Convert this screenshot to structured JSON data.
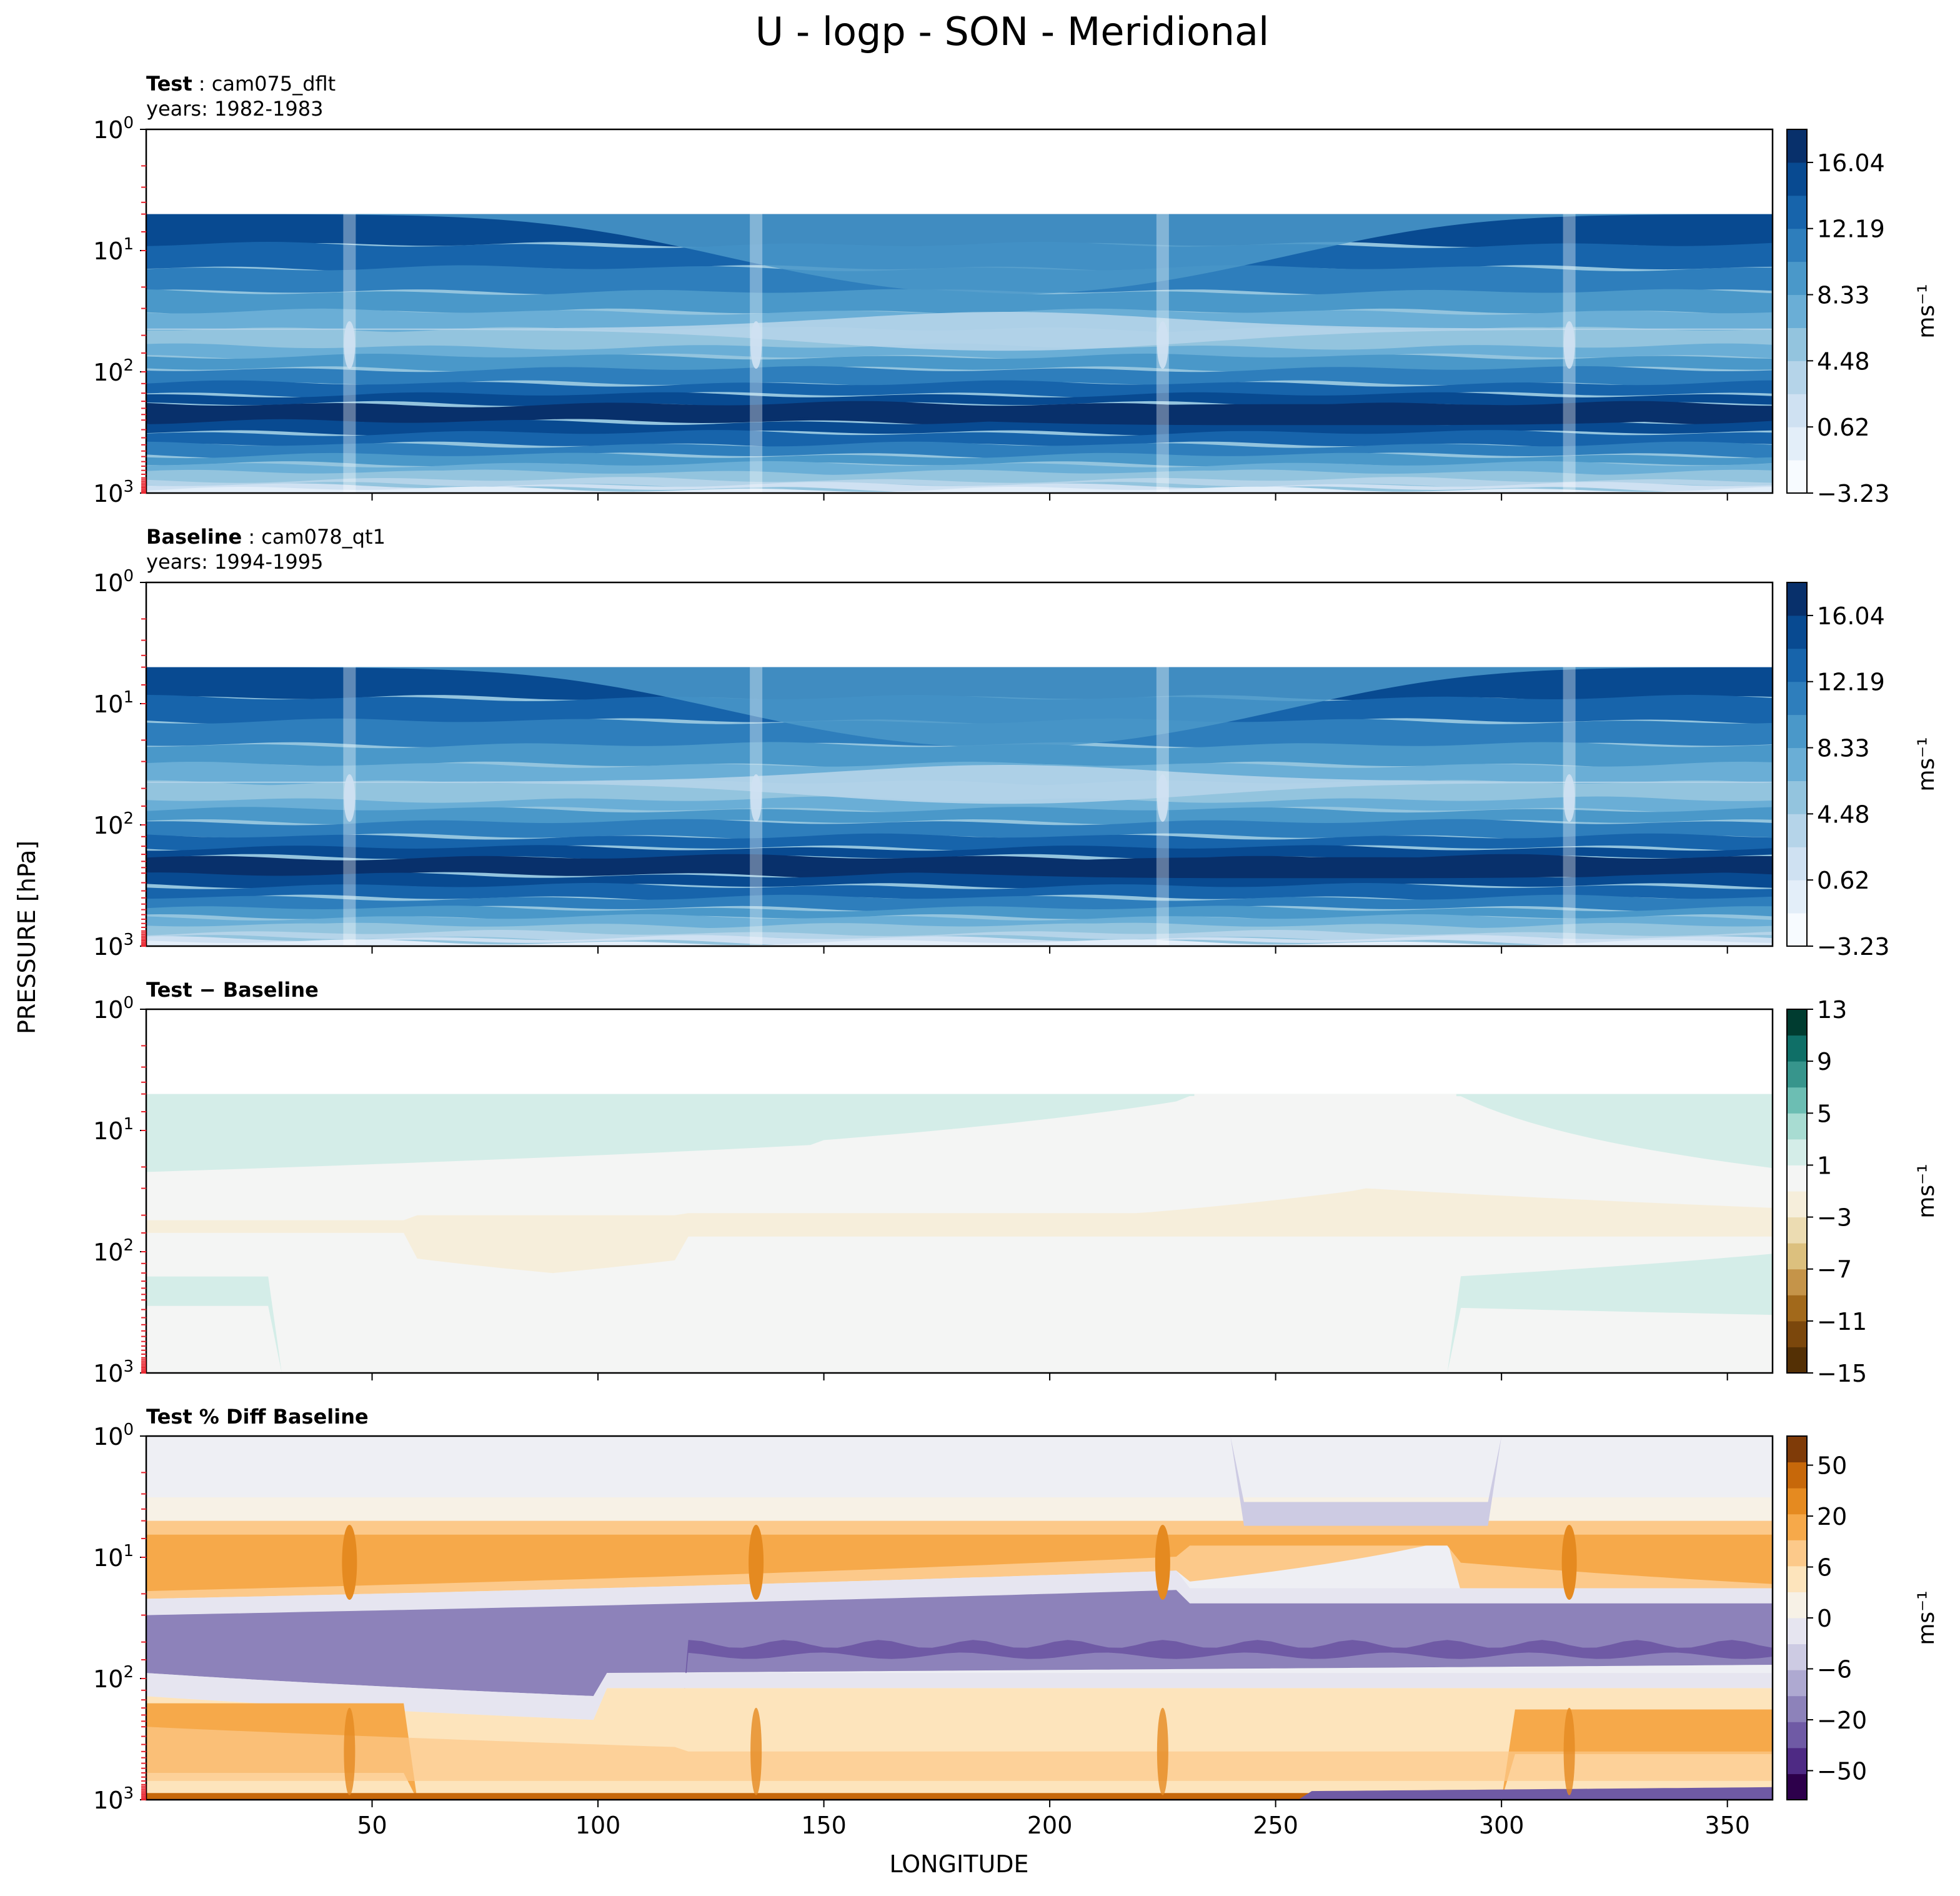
{
  "figure": {
    "title": "U - logp - SON - Meridional",
    "ylabel": "PRESSURE [hPa]",
    "xlabel": "LONGITUDE"
  },
  "chart_data": [
    {
      "type": "heatmap",
      "panel": "test",
      "title_bold": "Test",
      "title_rest": " : cam075_dflt",
      "subtitle": "years: 1982-1983",
      "xlim": [
        0,
        360
      ],
      "x_ticks": [
        50,
        100,
        150,
        200,
        250,
        300,
        350
      ],
      "x_ticks_labeled": false,
      "yscale": "log",
      "ylim": [
        1000,
        1
      ],
      "y_ticks": [
        {
          "base": "10",
          "exp": "0"
        },
        {
          "base": "10",
          "exp": "1"
        },
        {
          "base": "10",
          "exp": "2"
        },
        {
          "base": "10",
          "exp": "3"
        }
      ],
      "colormap": "Blues",
      "colorbar_ticks": [
        "16.04",
        "12.19",
        "8.33",
        "4.48",
        "0.62",
        "−3.23"
      ],
      "colorbar_range": [
        -3.23,
        17.96
      ],
      "colorbar_levels": 11,
      "colorbar_label": "ms⁻¹",
      "colors": [
        "#f7fbff",
        "#e3eef9",
        "#cfe1f2",
        "#b5d4e9",
        "#93c4de",
        "#6aaed6",
        "#4a98c9",
        "#2e7ebc",
        "#1764ab",
        "#084a91",
        "#08306b"
      ],
      "grid": false
    },
    {
      "type": "heatmap",
      "panel": "baseline",
      "title_bold": "Baseline",
      "title_rest": " : cam078_qt1",
      "subtitle": "years: 1994-1995",
      "xlim": [
        0,
        360
      ],
      "x_ticks": [
        50,
        100,
        150,
        200,
        250,
        300,
        350
      ],
      "x_ticks_labeled": false,
      "yscale": "log",
      "ylim": [
        1000,
        1
      ],
      "y_ticks": [
        {
          "base": "10",
          "exp": "0"
        },
        {
          "base": "10",
          "exp": "1"
        },
        {
          "base": "10",
          "exp": "2"
        },
        {
          "base": "10",
          "exp": "3"
        }
      ],
      "colormap": "Blues",
      "colorbar_ticks": [
        "16.04",
        "12.19",
        "8.33",
        "4.48",
        "0.62",
        "−3.23"
      ],
      "colorbar_range": [
        -3.23,
        17.96
      ],
      "colorbar_levels": 11,
      "colorbar_label": "ms⁻¹",
      "colors": [
        "#f7fbff",
        "#e3eef9",
        "#cfe1f2",
        "#b5d4e9",
        "#93c4de",
        "#6aaed6",
        "#4a98c9",
        "#2e7ebc",
        "#1764ab",
        "#084a91",
        "#08306b"
      ],
      "grid": false
    },
    {
      "type": "heatmap",
      "panel": "difference",
      "title_bold": "Test − Baseline",
      "title_rest": "",
      "subtitle": "",
      "xlim": [
        0,
        360
      ],
      "x_ticks": [
        50,
        100,
        150,
        200,
        250,
        300,
        350
      ],
      "x_ticks_labeled": false,
      "yscale": "log",
      "ylim": [
        1000,
        1
      ],
      "y_ticks": [
        {
          "base": "10",
          "exp": "0"
        },
        {
          "base": "10",
          "exp": "1"
        },
        {
          "base": "10",
          "exp": "2"
        },
        {
          "base": "10",
          "exp": "3"
        }
      ],
      "colormap": "BrBG",
      "colorbar_ticks": [
        "13",
        "9",
        "5",
        "1",
        "−3",
        "−7",
        "−11",
        "−15"
      ],
      "colorbar_range": [
        -15,
        13
      ],
      "colorbar_levels": 14,
      "colorbar_label": "ms⁻¹",
      "colors": [
        "#543005",
        "#7b470c",
        "#a2691b",
        "#c59449",
        "#dcc07e",
        "#ecdcb2",
        "#f6eedb",
        "#f4f5f4",
        "#d4ede8",
        "#a8dcd2",
        "#6cbeb3",
        "#37958c",
        "#0f6f67",
        "#003c30"
      ],
      "grid": false
    },
    {
      "type": "heatmap",
      "panel": "percent-difference",
      "title_bold": "Test % Diff Baseline",
      "title_rest": "",
      "subtitle": "",
      "xlim": [
        0,
        360
      ],
      "x_ticks": [
        50,
        100,
        150,
        200,
        250,
        300,
        350
      ],
      "x_tick_labels": [
        "50",
        "100",
        "150",
        "200",
        "250",
        "300",
        "350"
      ],
      "x_ticks_labeled": true,
      "yscale": "log",
      "ylim": [
        1000,
        1
      ],
      "y_ticks": [
        {
          "base": "10",
          "exp": "0"
        },
        {
          "base": "10",
          "exp": "1"
        },
        {
          "base": "10",
          "exp": "2"
        },
        {
          "base": "10",
          "exp": "3"
        }
      ],
      "colormap": "PuOr_r",
      "colorbar_ticks": [
        "50",
        "20",
        "6",
        "0",
        "−6",
        "−20",
        "−50"
      ],
      "colorbar_range": [
        -100,
        100
      ],
      "colorbar_levels": 14,
      "colorbar_label": "ms⁻¹",
      "colors": [
        "#2d004b",
        "#4e2a84",
        "#6f5aa5",
        "#8d82ba",
        "#aea9d1",
        "#cdcbe3",
        "#e6e5f0",
        "#f7f1e6",
        "#fde4bc",
        "#fcc98a",
        "#f6a94a",
        "#e58a20",
        "#c7680a",
        "#7f3b08"
      ],
      "grid": false
    }
  ]
}
